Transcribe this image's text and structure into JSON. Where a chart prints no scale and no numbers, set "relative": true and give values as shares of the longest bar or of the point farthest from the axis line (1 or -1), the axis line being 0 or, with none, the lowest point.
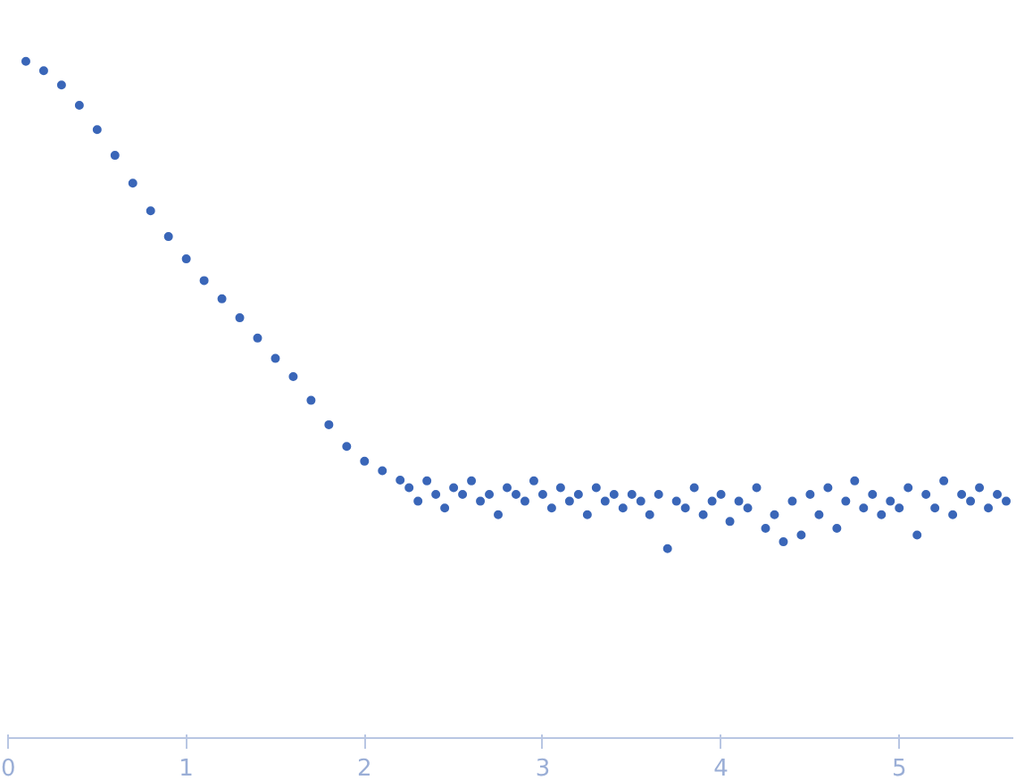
{
  "chart_data": {
    "type": "scatter",
    "relative": true,
    "marker": "circle",
    "grid": false,
    "xlim": [
      0,
      5.64
    ],
    "xticks": [
      0,
      1,
      2,
      3,
      4,
      5
    ],
    "x": [
      0.1,
      0.2,
      0.3,
      0.4,
      0.5,
      0.6,
      0.7,
      0.8,
      0.9,
      1.0,
      1.1,
      1.2,
      1.3,
      1.4,
      1.5,
      1.6,
      1.7,
      1.8,
      1.9,
      2.0,
      2.1,
      2.2,
      2.25,
      2.3,
      2.35,
      2.4,
      2.45,
      2.5,
      2.55,
      2.6,
      2.65,
      2.7,
      2.75,
      2.8,
      2.85,
      2.9,
      2.95,
      3.0,
      3.05,
      3.1,
      3.15,
      3.2,
      3.25,
      3.3,
      3.35,
      3.4,
      3.45,
      3.5,
      3.55,
      3.6,
      3.65,
      3.7,
      3.75,
      3.8,
      3.85,
      3.9,
      3.95,
      4.0,
      4.05,
      4.1,
      4.15,
      4.2,
      4.25,
      4.3,
      4.35,
      4.4,
      4.45,
      4.5,
      4.55,
      4.6,
      4.65,
      4.7,
      4.75,
      4.8,
      4.85,
      4.9,
      4.95,
      5.0,
      5.05,
      5.1,
      5.15,
      5.2,
      5.25,
      5.3,
      5.35,
      5.4,
      5.45,
      5.5,
      5.55,
      5.6
    ],
    "series": [
      {
        "color": "#3a66b8",
        "values": [
          1.0,
          0.986,
          0.965,
          0.935,
          0.899,
          0.861,
          0.82,
          0.779,
          0.741,
          0.708,
          0.676,
          0.649,
          0.621,
          0.591,
          0.561,
          0.534,
          0.499,
          0.463,
          0.431,
          0.409,
          0.395,
          0.381,
          0.37,
          0.35,
          0.38,
          0.36,
          0.34,
          0.37,
          0.36,
          0.38,
          0.35,
          0.36,
          0.33,
          0.37,
          0.36,
          0.35,
          0.38,
          0.36,
          0.34,
          0.37,
          0.35,
          0.36,
          0.33,
          0.37,
          0.35,
          0.36,
          0.34,
          0.36,
          0.35,
          0.33,
          0.36,
          0.28,
          0.35,
          0.34,
          0.37,
          0.33,
          0.35,
          0.36,
          0.32,
          0.35,
          0.34,
          0.37,
          0.31,
          0.33,
          0.29,
          0.35,
          0.3,
          0.36,
          0.33,
          0.37,
          0.31,
          0.35,
          0.38,
          0.34,
          0.36,
          0.33,
          0.35,
          0.34,
          0.37,
          0.3,
          0.36,
          0.34,
          0.38,
          0.33,
          0.36,
          0.35,
          0.37,
          0.34,
          0.36,
          0.35
        ]
      }
    ]
  }
}
